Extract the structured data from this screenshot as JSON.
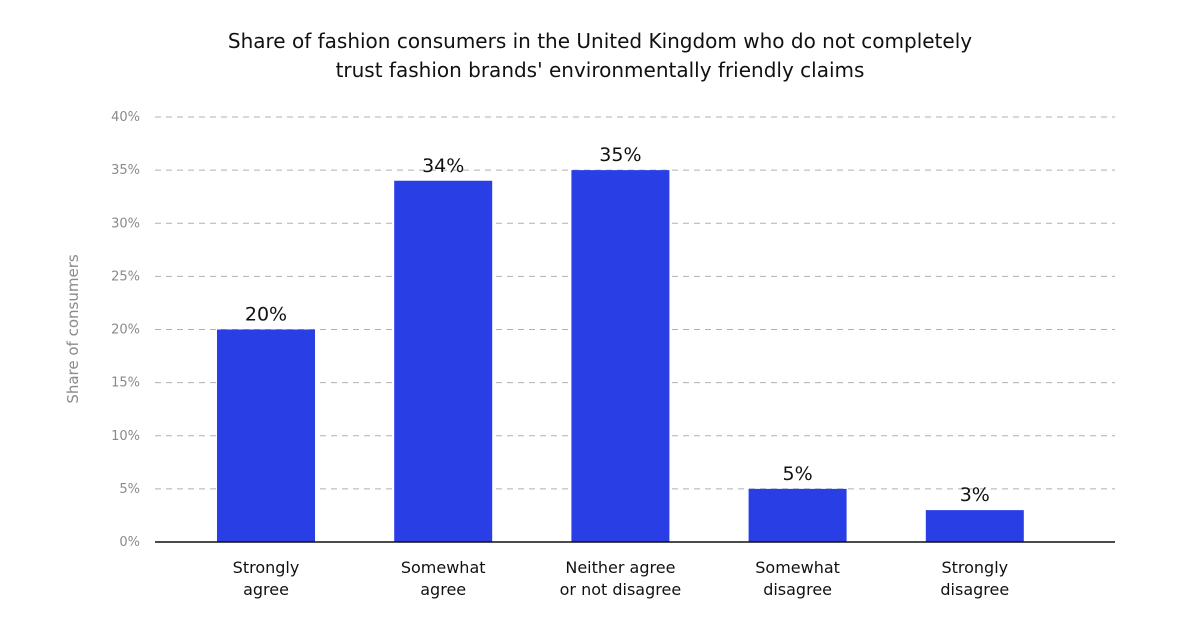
{
  "chart_data": {
    "type": "bar",
    "title_lines": [
      "Share of fashion consumers in the United Kingdom who do not completely",
      "trust fashion brands' environmentally friendly claims"
    ],
    "ylabel": "Share of consumers",
    "xlabel": "",
    "categories": [
      [
        "Strongly",
        "agree"
      ],
      [
        "Somewhat",
        "agree"
      ],
      [
        "Neither agree",
        "or not disagree"
      ],
      [
        "Somewhat",
        "disagree"
      ],
      [
        "Strongly",
        "disagree"
      ]
    ],
    "values": [
      20,
      34,
      35,
      5,
      3
    ],
    "value_labels": [
      "20%",
      "34%",
      "35%",
      "5%",
      "3%"
    ],
    "ylim": [
      0,
      40
    ],
    "yticks": [
      0,
      5,
      10,
      15,
      20,
      25,
      30,
      35,
      40
    ],
    "ytick_labels": [
      "0%",
      "5%",
      "10%",
      "15%",
      "20%",
      "25%",
      "30%",
      "35%",
      "40%"
    ],
    "grid": true,
    "bar_color": "#2a3ee6",
    "grid_color": "#b0b0b0",
    "axis_color": "#111111"
  }
}
